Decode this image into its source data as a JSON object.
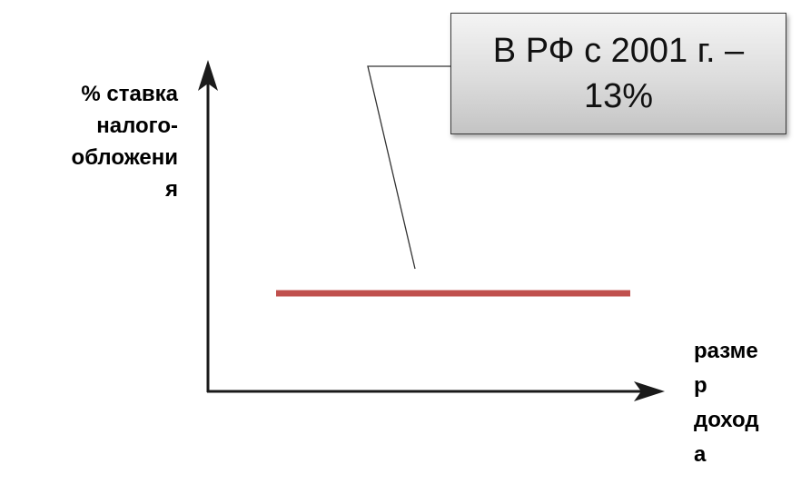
{
  "y_axis_label_lines": [
    "% ставка",
    "налого-",
    "обложени",
    "я"
  ],
  "x_axis_label_lines": [
    "разме",
    "р",
    "доход",
    "а"
  ],
  "callout": {
    "line1": "В РФ с 2001 г. –",
    "line2": "13%"
  },
  "colors": {
    "rate_line": "#c0504d",
    "axes": "#1a1a1a",
    "callout_border": "#3a3a3a"
  }
}
